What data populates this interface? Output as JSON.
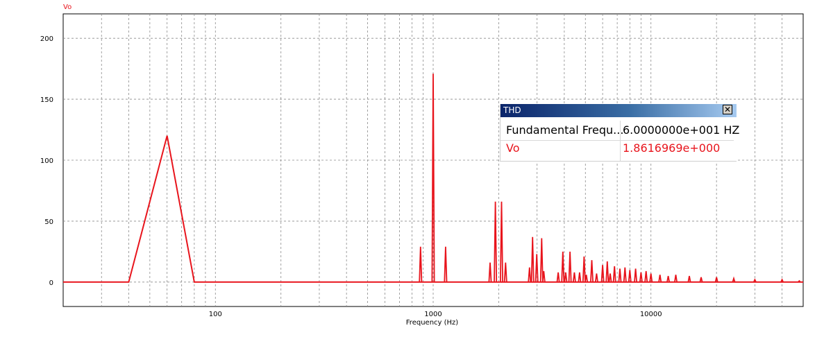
{
  "chart_data": {
    "type": "line",
    "series_name": "Vo",
    "xlabel": "Frequency (Hz)",
    "ylabel": "",
    "x_scale": "log",
    "xlim": [
      20,
      50000
    ],
    "ylim": [
      -20,
      220
    ],
    "x_tick_labels": [
      {
        "value": 100,
        "label": "100"
      },
      {
        "value": 1000,
        "label": "1000"
      },
      {
        "value": 10000,
        "label": "10000"
      }
    ],
    "y_tick_labels": [
      {
        "value": 0,
        "label": "0"
      },
      {
        "value": 50,
        "label": "50"
      },
      {
        "value": 100,
        "label": "100"
      },
      {
        "value": 150,
        "label": "150"
      },
      {
        "value": 200,
        "label": "200"
      }
    ],
    "grid": true,
    "line_color": "#e8141c",
    "main_lobe": [
      [
        20,
        0
      ],
      [
        40,
        0
      ],
      [
        60,
        120
      ],
      [
        80,
        0
      ],
      [
        800,
        0
      ]
    ],
    "spikes": [
      [
        875,
        29
      ],
      [
        1000,
        171
      ],
      [
        1140,
        29
      ],
      [
        1825,
        16
      ],
      [
        1930,
        66
      ],
      [
        2060,
        66
      ],
      [
        2150,
        16
      ],
      [
        2770,
        12
      ],
      [
        2860,
        37
      ],
      [
        2990,
        23
      ],
      [
        3150,
        36
      ],
      [
        3220,
        9
      ],
      [
        3750,
        8
      ],
      [
        3940,
        25
      ],
      [
        4060,
        8
      ],
      [
        4250,
        25
      ],
      [
        4450,
        8
      ],
      [
        4700,
        8
      ],
      [
        4930,
        21
      ],
      [
        5050,
        6
      ],
      [
        5350,
        18
      ],
      [
        5630,
        7
      ],
      [
        6000,
        14
      ],
      [
        6300,
        17
      ],
      [
        6500,
        7
      ],
      [
        6800,
        13
      ],
      [
        7200,
        11
      ],
      [
        7600,
        12
      ],
      [
        8000,
        10
      ],
      [
        8500,
        11
      ],
      [
        9000,
        8
      ],
      [
        9500,
        9
      ],
      [
        10000,
        7
      ],
      [
        11000,
        6
      ],
      [
        12000,
        5
      ],
      [
        13000,
        6
      ],
      [
        15000,
        5
      ],
      [
        17000,
        4
      ],
      [
        20000,
        4
      ],
      [
        24000,
        3
      ],
      [
        30000,
        2
      ],
      [
        40000,
        2
      ],
      [
        48000,
        1
      ]
    ]
  },
  "thd_panel": {
    "title": "THD",
    "close_glyph": "✕",
    "rows": [
      {
        "name": "Fundamental Frequ...",
        "value": "6.0000000e+001 HZ",
        "color": "#000000"
      },
      {
        "name": "Vo",
        "value": "1.8616969e+000",
        "color": "#e8141c"
      }
    ]
  }
}
